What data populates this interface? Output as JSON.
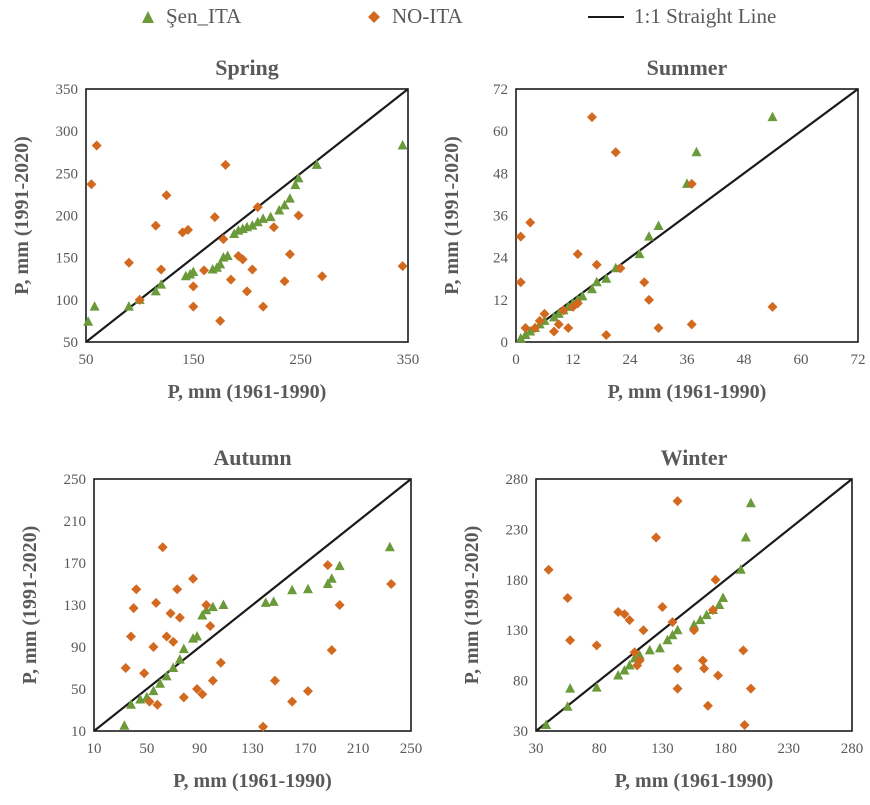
{
  "legend": {
    "sen": "Şen_ITA",
    "no": "NO-ITA",
    "line": "1:1 Straight Line"
  },
  "colors": {
    "sen": "#6a9a3a",
    "no": "#d2691e",
    "line": "#1a1a1a",
    "text": "#595959"
  },
  "chart_data": [
    {
      "type": "scatter",
      "title": "Spring",
      "xlabel": "P, mm (1961-1990)",
      "ylabel": "P, mm  (1991-2020)",
      "xlim": [
        50,
        350
      ],
      "ylim": [
        50,
        350
      ],
      "xticks": [
        50,
        150,
        250,
        350
      ],
      "yticks": [
        50,
        100,
        150,
        200,
        250,
        300,
        350
      ],
      "series": [
        {
          "name": "Şen_ITA",
          "marker": "triangle",
          "points": [
            [
              52,
              74
            ],
            [
              58,
              92
            ],
            [
              90,
              92
            ],
            [
              100,
              100
            ],
            [
              115,
              110
            ],
            [
              120,
              118
            ],
            [
              143,
              128
            ],
            [
              147,
              130
            ],
            [
              150,
              133
            ],
            [
              168,
              136
            ],
            [
              172,
              138
            ],
            [
              175,
              142
            ],
            [
              178,
              150
            ],
            [
              182,
              152
            ],
            [
              188,
              178
            ],
            [
              192,
              182
            ],
            [
              196,
              184
            ],
            [
              200,
              186
            ],
            [
              205,
              188
            ],
            [
              210,
              192
            ],
            [
              215,
              196
            ],
            [
              222,
              198
            ],
            [
              230,
              206
            ],
            [
              235,
              212
            ],
            [
              240,
              220
            ],
            [
              245,
              236
            ],
            [
              248,
              244
            ],
            [
              265,
              260
            ],
            [
              345,
              283
            ]
          ]
        },
        {
          "name": "NO-ITA",
          "marker": "diamond",
          "points": [
            [
              55,
              237
            ],
            [
              60,
              283
            ],
            [
              90,
              144
            ],
            [
              100,
              100
            ],
            [
              115,
              188
            ],
            [
              120,
              136
            ],
            [
              125,
              224
            ],
            [
              140,
              180
            ],
            [
              145,
              183
            ],
            [
              150,
              92
            ],
            [
              150,
              116
            ],
            [
              160,
              135
            ],
            [
              170,
              198
            ],
            [
              175,
              75
            ],
            [
              178,
              172
            ],
            [
              180,
              260
            ],
            [
              185,
              124
            ],
            [
              192,
              152
            ],
            [
              196,
              148
            ],
            [
              200,
              110
            ],
            [
              205,
              136
            ],
            [
              210,
              210
            ],
            [
              215,
              92
            ],
            [
              225,
              186
            ],
            [
              235,
              122
            ],
            [
              240,
              154
            ],
            [
              248,
              200
            ],
            [
              270,
              128
            ],
            [
              345,
              140
            ]
          ]
        }
      ]
    },
    {
      "type": "scatter",
      "title": "Summer",
      "xlabel": "P, mm (1961-1990)",
      "ylabel": "P, mm  (1991-2020)",
      "xlim": [
        0,
        72
      ],
      "ylim": [
        0,
        72
      ],
      "xticks": [
        0,
        12,
        24,
        36,
        48,
        60,
        72
      ],
      "yticks": [
        0,
        12,
        24,
        36,
        48,
        60,
        72
      ],
      "series": [
        {
          "name": "Şen_ITA",
          "marker": "triangle",
          "points": [
            [
              1,
              1
            ],
            [
              2,
              2
            ],
            [
              3,
              3
            ],
            [
              4,
              4
            ],
            [
              5,
              5
            ],
            [
              6,
              6
            ],
            [
              8,
              7
            ],
            [
              9,
              8
            ],
            [
              10,
              9
            ],
            [
              11,
              10
            ],
            [
              12,
              11
            ],
            [
              13,
              12
            ],
            [
              14,
              13
            ],
            [
              16,
              15
            ],
            [
              17,
              17
            ],
            [
              19,
              18
            ],
            [
              21,
              21
            ],
            [
              26,
              25
            ],
            [
              28,
              30
            ],
            [
              30,
              33
            ],
            [
              36,
              45
            ],
            [
              38,
              54
            ],
            [
              54,
              64
            ]
          ]
        },
        {
          "name": "NO-ITA",
          "marker": "diamond",
          "points": [
            [
              1,
              30
            ],
            [
              1,
              17
            ],
            [
              2,
              4
            ],
            [
              3,
              34
            ],
            [
              4,
              4
            ],
            [
              5,
              6
            ],
            [
              6,
              8
            ],
            [
              8,
              3
            ],
            [
              9,
              5
            ],
            [
              10,
              9
            ],
            [
              11,
              4
            ],
            [
              12,
              10
            ],
            [
              13,
              11
            ],
            [
              13,
              25
            ],
            [
              16,
              64
            ],
            [
              17,
              22
            ],
            [
              19,
              2
            ],
            [
              21,
              54
            ],
            [
              22,
              21
            ],
            [
              27,
              17
            ],
            [
              28,
              12
            ],
            [
              30,
              4
            ],
            [
              37,
              5
            ],
            [
              37,
              45
            ],
            [
              54,
              10
            ]
          ]
        }
      ]
    },
    {
      "type": "scatter",
      "title": "Autumn",
      "xlabel": "P, mm (1961-1990)",
      "ylabel": "P, mm  (1991-2020)",
      "xlim": [
        10,
        250
      ],
      "ylim": [
        10,
        250
      ],
      "xticks": [
        10,
        50,
        90,
        130,
        170,
        210,
        250
      ],
      "yticks": [
        10,
        50,
        90,
        130,
        170,
        210,
        250
      ],
      "series": [
        {
          "name": "Şen_ITA",
          "marker": "triangle",
          "points": [
            [
              33,
              15
            ],
            [
              38,
              35
            ],
            [
              45,
              40
            ],
            [
              50,
              42
            ],
            [
              55,
              48
            ],
            [
              60,
              55
            ],
            [
              65,
              62
            ],
            [
              70,
              70
            ],
            [
              75,
              78
            ],
            [
              78,
              88
            ],
            [
              85,
              98
            ],
            [
              88,
              100
            ],
            [
              92,
              120
            ],
            [
              95,
              125
            ],
            [
              100,
              128
            ],
            [
              108,
              130
            ],
            [
              140,
              132
            ],
            [
              146,
              133
            ],
            [
              160,
              144
            ],
            [
              172,
              145
            ],
            [
              187,
              150
            ],
            [
              190,
              155
            ],
            [
              196,
              167
            ],
            [
              234,
              185
            ]
          ]
        },
        {
          "name": "NO-ITA",
          "marker": "diamond",
          "points": [
            [
              34,
              70
            ],
            [
              38,
              100
            ],
            [
              40,
              127
            ],
            [
              42,
              145
            ],
            [
              48,
              65
            ],
            [
              52,
              38
            ],
            [
              55,
              90
            ],
            [
              57,
              132
            ],
            [
              58,
              35
            ],
            [
              62,
              185
            ],
            [
              65,
              100
            ],
            [
              68,
              122
            ],
            [
              70,
              95
            ],
            [
              73,
              145
            ],
            [
              75,
              118
            ],
            [
              78,
              42
            ],
            [
              85,
              155
            ],
            [
              88,
              50
            ],
            [
              92,
              45
            ],
            [
              95,
              130
            ],
            [
              98,
              110
            ],
            [
              100,
              58
            ],
            [
              106,
              75
            ],
            [
              138,
              14
            ],
            [
              147,
              58
            ],
            [
              160,
              38
            ],
            [
              172,
              48
            ],
            [
              187,
              168
            ],
            [
              190,
              87
            ],
            [
              196,
              130
            ],
            [
              235,
              150
            ]
          ]
        }
      ]
    },
    {
      "type": "scatter",
      "title": "Winter",
      "xlabel": "P, mm (1961-1990)",
      "ylabel": "P, mm  (1991-2020)",
      "xlim": [
        30,
        280
      ],
      "ylim": [
        30,
        280
      ],
      "xticks": [
        30,
        80,
        130,
        180,
        230,
        280
      ],
      "yticks": [
        30,
        80,
        130,
        180,
        230,
        280
      ],
      "series": [
        {
          "name": "Şen_ITA",
          "marker": "triangle",
          "points": [
            [
              38,
              36
            ],
            [
              55,
              54
            ],
            [
              57,
              72
            ],
            [
              78,
              73
            ],
            [
              95,
              85
            ],
            [
              100,
              90
            ],
            [
              104,
              95
            ],
            [
              108,
              102
            ],
            [
              112,
              105
            ],
            [
              120,
              110
            ],
            [
              128,
              112
            ],
            [
              134,
              120
            ],
            [
              138,
              125
            ],
            [
              142,
              130
            ],
            [
              155,
              135
            ],
            [
              160,
              140
            ],
            [
              165,
              145
            ],
            [
              170,
              150
            ],
            [
              175,
              155
            ],
            [
              178,
              162
            ],
            [
              192,
              190
            ],
            [
              196,
              222
            ],
            [
              200,
              256
            ]
          ]
        },
        {
          "name": "NO-ITA",
          "marker": "diamond",
          "points": [
            [
              40,
              190
            ],
            [
              55,
              162
            ],
            [
              57,
              120
            ],
            [
              78,
              115
            ],
            [
              95,
              148
            ],
            [
              100,
              146
            ],
            [
              104,
              140
            ],
            [
              108,
              108
            ],
            [
              110,
              95
            ],
            [
              112,
              100
            ],
            [
              115,
              130
            ],
            [
              125,
              222
            ],
            [
              130,
              153
            ],
            [
              138,
              138
            ],
            [
              142,
              258
            ],
            [
              142,
              72
            ],
            [
              142,
              92
            ],
            [
              155,
              130
            ],
            [
              162,
              100
            ],
            [
              163,
              92
            ],
            [
              166,
              55
            ],
            [
              170,
              150
            ],
            [
              172,
              180
            ],
            [
              174,
              85
            ],
            [
              194,
              110
            ],
            [
              195,
              36
            ],
            [
              200,
              72
            ]
          ]
        }
      ]
    }
  ]
}
